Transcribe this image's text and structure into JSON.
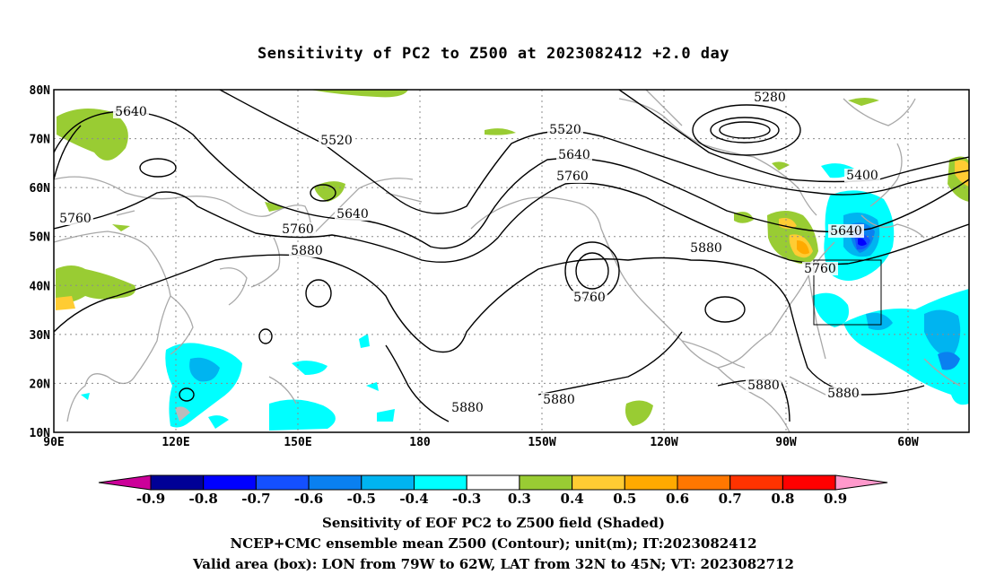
{
  "title": "Sensitivity of PC2 to Z500 at 2023082412 +2.0 day",
  "lat_labels": [
    "80N",
    "70N",
    "60N",
    "50N",
    "40N",
    "30N",
    "20N",
    "10N"
  ],
  "lon_labels": [
    "90E",
    "120E",
    "150E",
    "180",
    "150W",
    "120W",
    "90W",
    "60W"
  ],
  "contour_labels": [
    {
      "text": "5640"
    },
    {
      "text": "5520"
    },
    {
      "text": "5760"
    },
    {
      "text": "5640"
    },
    {
      "text": "5760"
    },
    {
      "text": "5880"
    },
    {
      "text": "5880"
    },
    {
      "text": "5520"
    },
    {
      "text": "5640"
    },
    {
      "text": "5760"
    },
    {
      "text": "5280"
    },
    {
      "text": "5400"
    },
    {
      "text": "5640"
    },
    {
      "text": "5760"
    },
    {
      "text": "5880"
    },
    {
      "text": "5760"
    },
    {
      "text": "5880"
    },
    {
      "text": "5880"
    },
    {
      "text": "5880"
    }
  ],
  "colorbar": {
    "labels": [
      "-0.9",
      "-0.8",
      "-0.7",
      "-0.6",
      "-0.5",
      "-0.4",
      "-0.3",
      "0.3",
      "0.4",
      "0.5",
      "0.6",
      "0.7",
      "0.8",
      "0.9"
    ],
    "colors": [
      "#000096",
      "#0000ff",
      "#1450ff",
      "#0a80f0",
      "#00b4f0",
      "#00ffff",
      "#ffffff",
      "#99cc33",
      "#ffcc33",
      "#ffaa00",
      "#ff7700",
      "#ff3300",
      "#ff0000"
    ],
    "low_color": "#cc0099",
    "high_color": "#ff99cc"
  },
  "valid_box": {
    "lon_min": "79W",
    "lon_max": "62W",
    "lat_min": "32N",
    "lat_max": "45N"
  },
  "footer": [
    "Sensitivity of EOF PC2 to Z500 field (Shaded)",
    "NCEP+CMC ensemble mean Z500 (Contour); unit(m); IT:2023082412",
    "Valid area (box): LON from 79W to 62W, LAT from 32N to 45N; VT: 2023082712"
  ]
}
